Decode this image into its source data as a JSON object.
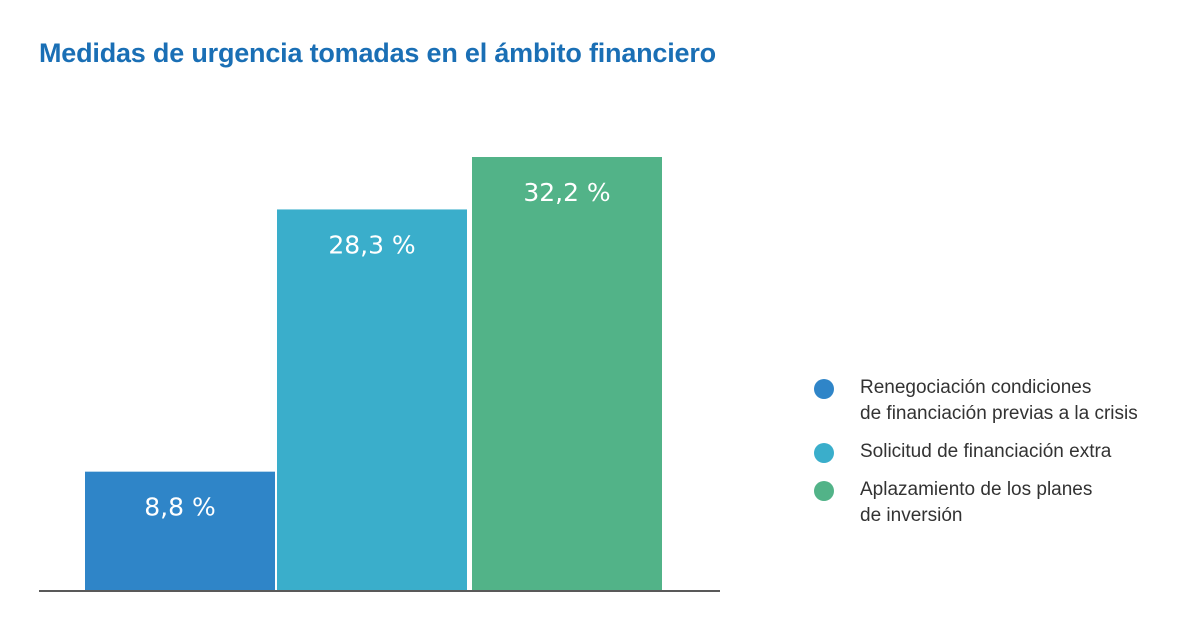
{
  "chart_data": {
    "type": "bar",
    "title": "Medidas de urgencia tomadas en el ámbito financiero",
    "categories": [
      "Renegociación condiciones\nde financiación previas a la crisis",
      "Solicitud de financiación extra",
      "Aplazamiento de los planes\nde inversión"
    ],
    "values": [
      8.8,
      28.3,
      32.2
    ],
    "data_labels": [
      "8,8 %",
      "28,3 %",
      "32,2 %"
    ],
    "colors": [
      "#2f85c8",
      "#3aaecb",
      "#52b388"
    ],
    "ylim": [
      0,
      32.2
    ],
    "grid": false,
    "legend_position": "right"
  }
}
